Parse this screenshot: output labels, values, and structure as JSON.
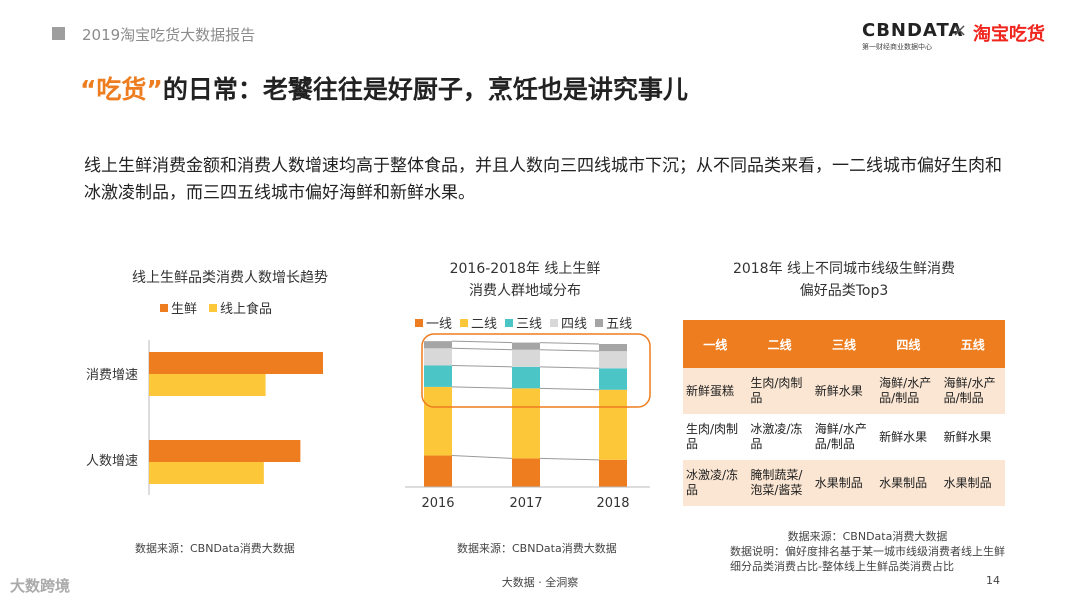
{
  "header": {
    "report_title": "2019淘宝吃货大数据报告",
    "brand_cbndata": "CBNDATA",
    "brand_cbndata_sub": "第一财经商业数据中心",
    "brand_x": "×",
    "brand_taobao": "淘宝吃货"
  },
  "slide": {
    "title_quote": "“吃货”",
    "title_rest": "的日常：老饕往往是好厨子，烹饪也是讲究事儿",
    "intro": "线上生鲜消费金额和消费人数增速均高于整体食品，并且人数向三四线城市下沉；从不同品类来看，一二线城市偏好生肉和冰激凌制品，而三四五线城市偏好海鲜和新鲜水果。"
  },
  "colors": {
    "orange": "#ed7d1f",
    "yellow": "#fdc73a",
    "teal": "#4bc5c5",
    "light_gray": "#d8d8d8",
    "gray": "#a5a5a5",
    "table_odd": "#fbe6d3"
  },
  "chart_data": [
    {
      "type": "bar",
      "orientation": "horizontal",
      "title": "线上生鲜品类消费人数增长趋势",
      "categories": [
        "消费增速",
        "人数增速"
      ],
      "series": [
        {
          "name": "生鲜",
          "values": [
            1.0,
            0.87
          ],
          "color": "#ed7d1f"
        },
        {
          "name": "线上食品",
          "values": [
            0.67,
            0.66
          ],
          "color": "#fdc73a"
        }
      ],
      "xlim": [
        0,
        1
      ],
      "source": "数据来源：CBNData消费大数据"
    },
    {
      "type": "bar",
      "stacked": true,
      "percent": true,
      "title_line1": "2016-2018年 线上生鲜",
      "title_line2": "消费人群地域分布",
      "categories": [
        "2016",
        "2017",
        "2018"
      ],
      "series": [
        {
          "name": "一线",
          "values": [
            22,
            20,
            19
          ],
          "color": "#ed7d1f"
        },
        {
          "name": "二线",
          "values": [
            48,
            49,
            49
          ],
          "color": "#fdc73a"
        },
        {
          "name": "三线",
          "values": [
            15,
            15,
            15
          ],
          "color": "#4bc5c5"
        },
        {
          "name": "四线",
          "values": [
            12,
            12,
            12
          ],
          "color": "#d8d8d8"
        },
        {
          "name": "五线",
          "values": [
            5,
            5,
            5
          ],
          "color": "#a5a5a5"
        }
      ],
      "ylim": [
        0,
        100
      ],
      "source": "数据来源：CBNData消费大数据"
    },
    {
      "type": "table",
      "title_line1": "2018年 线上不同城市线级生鲜消费",
      "title_line2": "偏好品类Top3",
      "headers": [
        "一线",
        "二线",
        "三线",
        "四线",
        "五线"
      ],
      "rows": [
        [
          "新鲜蛋糕",
          "生肉/肉制品",
          "新鲜水果",
          "海鲜/水产品/制品",
          "海鲜/水产品/制品"
        ],
        [
          "生肉/肉制品",
          "冰激凌/冻品",
          "海鲜/水产品/制品",
          "新鲜水果",
          "新鲜水果"
        ],
        [
          "冰激凌/冻品",
          "腌制蔬菜/泡菜/酱菜",
          "水果制品",
          "水果制品",
          "水果制品"
        ]
      ],
      "source": "数据来源：CBNData消费大数据",
      "note": "数据说明：偏好度排名基于某一城市线级消费者线上生鲜细分品类消费占比-整体线上生鲜品类消费占比"
    }
  ],
  "footer": {
    "center": "大数据 · 全洞察",
    "page": "14",
    "watermark_logo": "大数跨境"
  }
}
